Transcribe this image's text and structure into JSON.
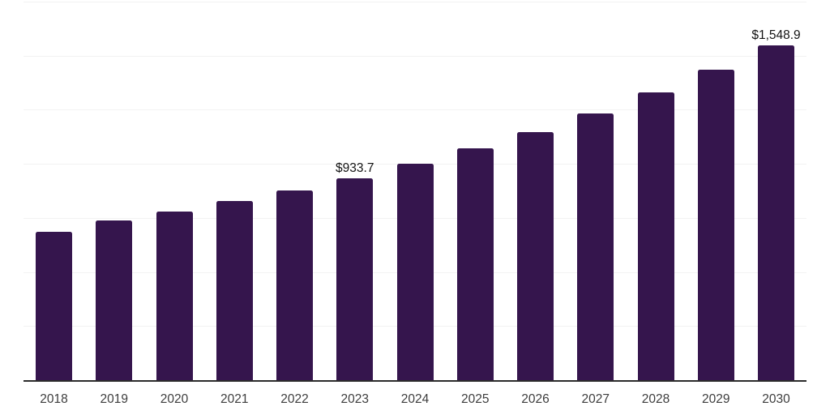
{
  "chart": {
    "background_color": "#ffffff",
    "bar_color": "#35154d",
    "grid_color": "#f2f2f2",
    "axis_color": "#2b2b2b",
    "tick_label_color": "#3d3d3d",
    "value_label_color": "#141414"
  },
  "chart_data": {
    "type": "bar",
    "title": "",
    "xlabel": "",
    "ylabel": "",
    "categories": [
      "2018",
      "2019",
      "2020",
      "2021",
      "2022",
      "2023",
      "2024",
      "2025",
      "2026",
      "2027",
      "2028",
      "2029",
      "2030"
    ],
    "values": [
      685,
      737,
      781,
      827,
      877,
      933.7,
      999,
      1071,
      1147,
      1231,
      1330,
      1435,
      1548.9
    ],
    "value_labels": {
      "5": "$933.7",
      "12": "$1,548.9"
    },
    "ylim": [
      0,
      1750
    ],
    "grid_interval": 250,
    "grid": true,
    "legend": false,
    "y_tick_labels_visible": false
  }
}
